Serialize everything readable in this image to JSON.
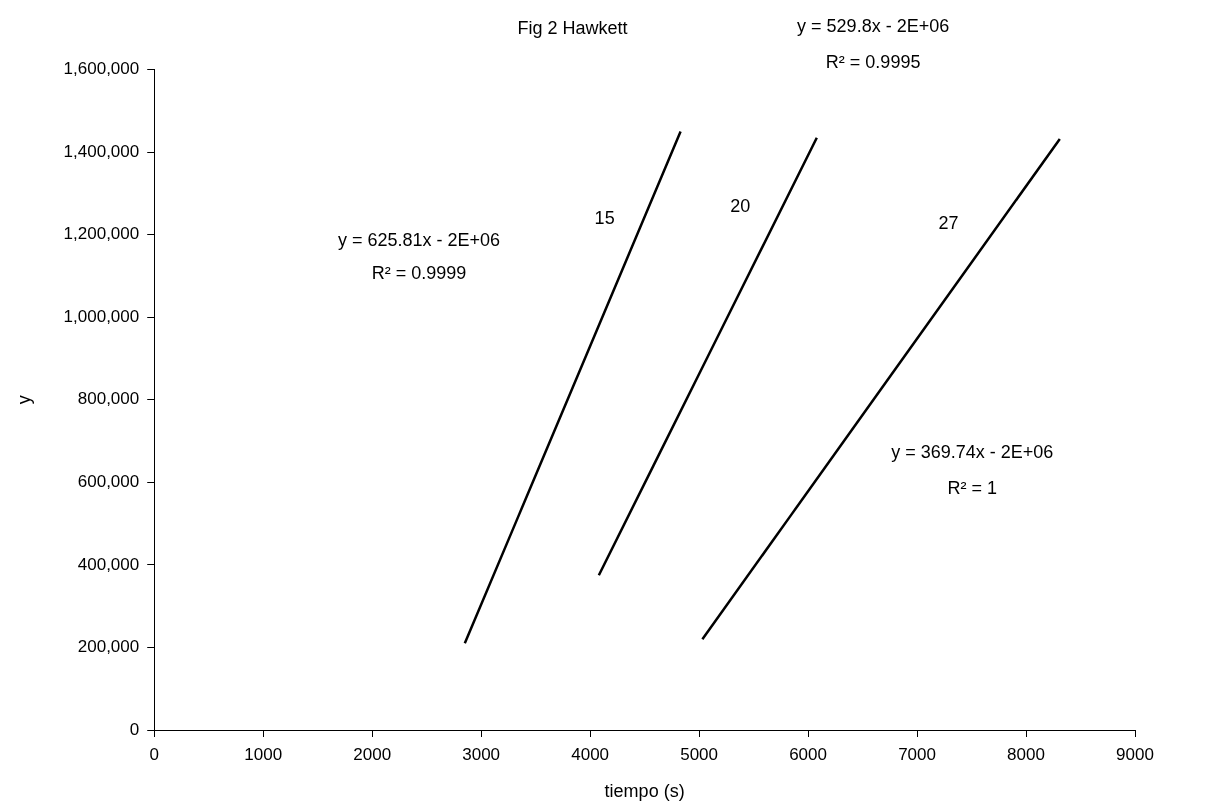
{
  "chart_data": {
    "type": "line",
    "title": "Fig 2 Hawkett",
    "xlabel": "tiempo (s)",
    "ylabel": "y",
    "series": [
      {
        "name": "15",
        "color": "#000000",
        "x": [
          2850,
          3345,
          3840,
          4335,
          4830
        ],
        "values": [
          210000,
          520000,
          830000,
          1140000,
          1450000
        ]
      },
      {
        "name": "20",
        "color": "#000000",
        "x": [
          4080,
          4580,
          5080,
          5580,
          6080
        ],
        "values": [
          375000,
          640000,
          905000,
          1170000,
          1435000
        ]
      },
      {
        "name": "27",
        "color": "#000000",
        "x": [
          5030,
          5850,
          6670,
          7490,
          8310
        ],
        "values": [
          220000,
          523000,
          826000,
          1129000,
          1432000
        ]
      }
    ],
    "xlim": [
      0,
      9000
    ],
    "xticks": [
      0,
      1000,
      2000,
      3000,
      4000,
      5000,
      6000,
      7000,
      8000,
      9000
    ],
    "ylim": [
      0,
      1600000
    ],
    "yticks": [
      {
        "value": 0,
        "label": "0"
      },
      {
        "value": 200000,
        "label": "200,000"
      },
      {
        "value": 400000,
        "label": "400,000"
      },
      {
        "value": 600000,
        "label": "600,000"
      },
      {
        "value": 800000,
        "label": "800,000"
      },
      {
        "value": 1000000,
        "label": "1,000,000"
      },
      {
        "value": 1200000,
        "label": "1,200,000"
      },
      {
        "value": 1400000,
        "label": "1,400,000"
      },
      {
        "value": 1600000,
        "label": "1,600,000"
      }
    ],
    "annotations": [
      "y = 625.81x - 2E+06",
      "R² = 0.9999",
      "y = 529.8x - 2E+06",
      "R² = 0.9995",
      "y = 369.74x - 2E+06",
      "R² = 1"
    ],
    "grid": false,
    "legend": false,
    "marker": "none",
    "line_style": "solid"
  }
}
